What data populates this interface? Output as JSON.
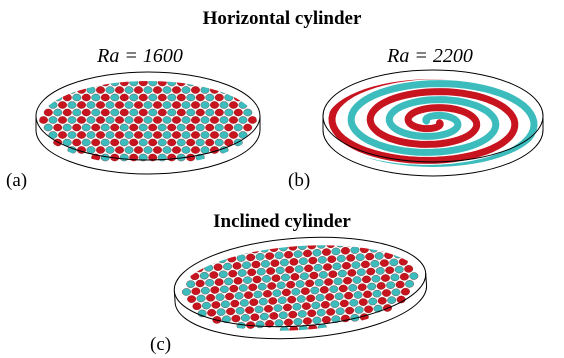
{
  "sections": [
    {
      "title": "Horizontal cylinder",
      "panels": [
        {
          "parameter": "Ra = 1600",
          "tag": "(a)"
        },
        {
          "parameter": "Ra = 2200",
          "tag": "(b)"
        }
      ]
    },
    {
      "title": "Inclined cylinder",
      "panels": [
        {
          "tag": "(c)"
        }
      ]
    }
  ]
}
